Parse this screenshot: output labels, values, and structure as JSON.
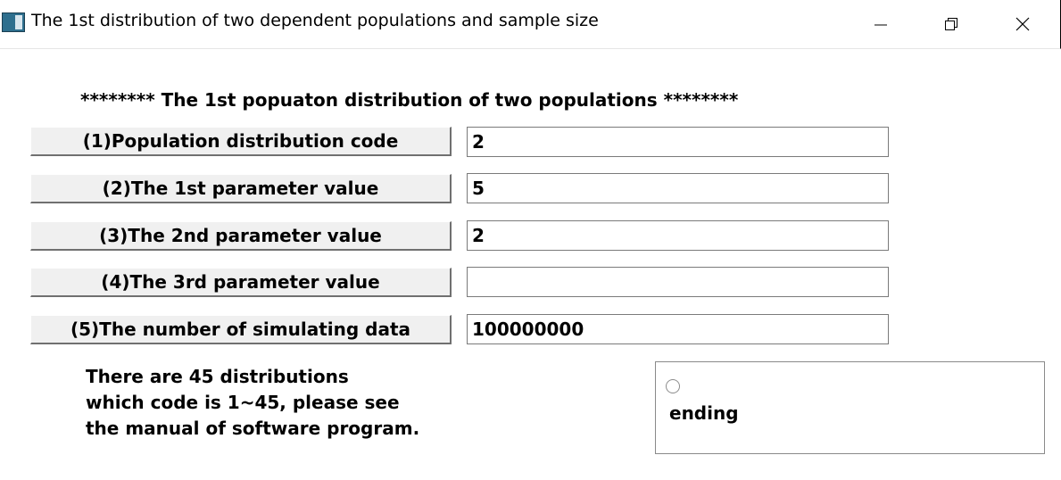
{
  "window": {
    "title": "The 1st distribution of two dependent populations and sample size",
    "icon": "app-window-icon",
    "controls": {
      "minimize_icon": "minimize-icon",
      "maximize_icon": "restore-icon",
      "close_icon": "close-icon"
    }
  },
  "main": {
    "heading": "******** The 1st popuaton distribution of two populations ********",
    "params": [
      {
        "label": "(1)Population distribution code",
        "value": "2"
      },
      {
        "label": "(2)The 1st parameter value",
        "value": "5"
      },
      {
        "label": "(3)The 2nd parameter value",
        "value": "2"
      },
      {
        "label": "(4)The 3rd parameter value",
        "value": ""
      },
      {
        "label": "(5)The number of simulating data",
        "value": "100000000"
      }
    ],
    "info_lines": [
      "There are 45 distributions",
      "which code is 1~45, please see",
      "the manual of software program."
    ],
    "ending_option": {
      "label": "ending",
      "checked": false
    }
  }
}
